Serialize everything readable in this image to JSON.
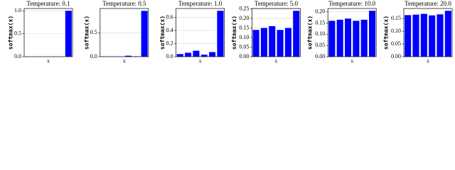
{
  "chart_data": [
    {
      "type": "bar",
      "title": "Temperature: 0.1",
      "xlabel": "x",
      "ylabel": "softmax(x)",
      "categories": [
        null,
        null,
        null,
        null,
        null,
        null
      ],
      "values": [
        0.0,
        0.0,
        0.0,
        0.0,
        0.0,
        1.0
      ],
      "color": "#0000ff",
      "ylim": [
        0,
        1.05
      ],
      "yticks": [
        {
          "value": 0,
          "label": "0.0"
        },
        {
          "value": 0.5,
          "label": "0.5"
        },
        {
          "value": 1,
          "label": "1.0"
        }
      ],
      "grid": true
    },
    {
      "type": "bar",
      "title": "Temperature: 0.5",
      "xlabel": "x",
      "ylabel": "softmax(x)",
      "categories": [
        null,
        null,
        null,
        null,
        null,
        null
      ],
      "values": [
        0.003,
        0.005,
        0.002,
        0.02,
        0.008,
        0.96
      ],
      "color": "#0000ff",
      "ylim": [
        0,
        1.01
      ],
      "yticks": [
        {
          "value": 0,
          "label": "0.0"
        },
        {
          "value": 0.5,
          "label": "0.5"
        }
      ],
      "grid": true
    },
    {
      "type": "bar",
      "title": "Temperature: 1.0",
      "xlabel": "x",
      "ylabel": "softmax(x)",
      "categories": [
        null,
        null,
        null,
        null,
        null,
        null
      ],
      "values": [
        0.04,
        0.06,
        0.09,
        0.03,
        0.07,
        0.7
      ],
      "color": "#0000ff",
      "ylim": [
        0,
        0.735
      ],
      "yticks": [
        {
          "value": 0,
          "label": "0.0"
        },
        0.2,
        0.4,
        0.6
      ],
      "grid": true
    },
    {
      "type": "bar",
      "title": "Temperature: 5.0",
      "xlabel": "x",
      "ylabel": "softmax(x)",
      "categories": [
        null,
        null,
        null,
        null,
        null,
        null
      ],
      "values": [
        0.14,
        0.15,
        0.16,
        0.14,
        0.15,
        0.24
      ],
      "color": "#0000ff",
      "ylim": [
        0,
        0.252
      ],
      "yticks": [
        {
          "value": 0,
          "label": "0.00"
        },
        0.05,
        {
          "value": 0.1,
          "label": "0.10"
        },
        0.15,
        {
          "value": 0.2,
          "label": "0.20"
        },
        0.25
      ],
      "grid": true
    },
    {
      "type": "bar",
      "title": "Temperature: 10.0",
      "xlabel": "x",
      "ylabel": "softmax(x)",
      "categories": [
        null,
        null,
        null,
        null,
        null,
        null
      ],
      "values": [
        0.16,
        0.165,
        0.17,
        0.16,
        0.165,
        0.205
      ],
      "color": "#0000ff",
      "ylim": [
        0,
        0.215
      ],
      "yticks": [
        {
          "value": 0,
          "label": "0.00"
        },
        0.05,
        {
          "value": 0.1,
          "label": "0.10"
        },
        0.15,
        {
          "value": 0.2,
          "label": "0.20"
        }
      ],
      "grid": true
    },
    {
      "type": "bar",
      "title": "Temperature: 20.0",
      "xlabel": "x",
      "ylabel": "softmax(x)",
      "categories": [
        null,
        null,
        null,
        null,
        null,
        null
      ],
      "values": [
        0.163,
        0.165,
        0.168,
        0.162,
        0.166,
        0.18
      ],
      "color": "#0000ff",
      "ylim": [
        0,
        0.189
      ],
      "yticks": [
        {
          "value": 0,
          "label": "0.00"
        },
        0.05,
        {
          "value": 0.1,
          "label": "0.10"
        },
        0.15
      ],
      "grid": true
    }
  ]
}
